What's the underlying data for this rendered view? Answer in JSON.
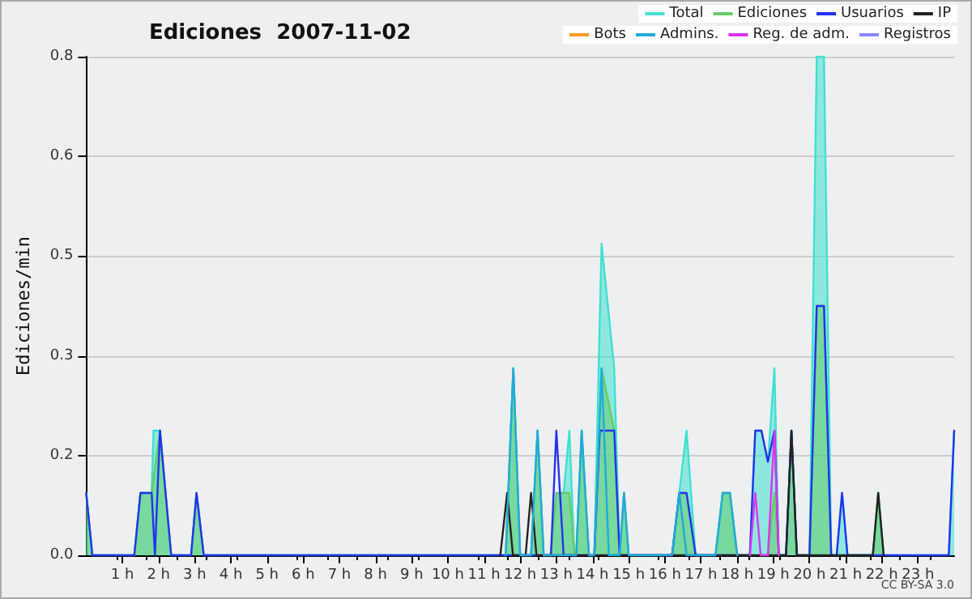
{
  "chart_data": {
    "type": "line",
    "title": "Ediciones  2007-11-02",
    "ylabel": "Ediciones/min",
    "annotations": [
      "CC BY-SA 3.0"
    ],
    "xlim": [
      0,
      24
    ],
    "xticks": [
      {
        "value": 1,
        "label": "1 h"
      },
      {
        "value": 2,
        "label": "2 h"
      },
      {
        "value": 3,
        "label": "3 h"
      },
      {
        "value": 4,
        "label": "4 h"
      },
      {
        "value": 5,
        "label": "5 h"
      },
      {
        "value": 6,
        "label": "6 h"
      },
      {
        "value": 7,
        "label": "7 h"
      },
      {
        "value": 8,
        "label": "8 h"
      },
      {
        "value": 9,
        "label": "9 h"
      },
      {
        "value": 10,
        "label": "10 h"
      },
      {
        "value": 11,
        "label": "11 h"
      },
      {
        "value": 12,
        "label": "12 h"
      },
      {
        "value": 13,
        "label": "13 h"
      },
      {
        "value": 14,
        "label": "14 h"
      },
      {
        "value": 15,
        "label": "15 h"
      },
      {
        "value": 16,
        "label": "16 h"
      },
      {
        "value": 17,
        "label": "17 h"
      },
      {
        "value": 18,
        "label": "18 h"
      },
      {
        "value": 19,
        "label": "19 h"
      },
      {
        "value": 20,
        "label": "20 h"
      },
      {
        "value": 21,
        "label": "21 h"
      },
      {
        "value": 22,
        "label": "22 h"
      },
      {
        "value": 23,
        "label": "23 h"
      }
    ],
    "ylim": [
      0,
      0.8
    ],
    "yticks": [
      {
        "value": 0,
        "label": "0.0"
      },
      {
        "value": 0.16,
        "label": "0.2"
      },
      {
        "value": 0.32,
        "label": "0.3"
      },
      {
        "value": 0.48,
        "label": "0.5"
      },
      {
        "value": 0.64,
        "label": "0.6"
      },
      {
        "value": 0.8,
        "label": "0.8"
      }
    ],
    "grid": "y",
    "legend": "top right",
    "marker": "none",
    "line_style": "solid",
    "series": [
      {
        "name": "Total",
        "type": "area",
        "color": "#40e0d0",
        "x": [
          0,
          0.17,
          1.33,
          1.5,
          1.81,
          1.86,
          2.04,
          2.35,
          2.9,
          3.05,
          3.25,
          11.6,
          11.81,
          12.0,
          12.3,
          12.48,
          12.65,
          12.85,
          13.0,
          13.2,
          13.36,
          13.5,
          13.55,
          13.7,
          13.9,
          14.05,
          14.25,
          14.6,
          14.75,
          14.87,
          15.0,
          16.2,
          16.4,
          16.6,
          16.85,
          17.4,
          17.6,
          17.8,
          18.0,
          18.35,
          18.5,
          18.67,
          18.85,
          19.03,
          19.15,
          19.35,
          19.5,
          19.65,
          20.0,
          20.2,
          20.4,
          20.6,
          20.75,
          20.9,
          21.05,
          21.75,
          21.9,
          22.05,
          23.85,
          24
        ],
        "values": [
          0.1,
          0,
          0,
          0.1,
          0.1,
          0.2,
          0.2,
          0,
          0,
          0.1,
          0,
          0,
          0.3,
          0,
          0,
          0.2,
          0,
          0,
          0.1,
          0.1,
          0.2,
          0,
          0,
          0.2,
          0,
          0,
          0.5,
          0.3,
          0,
          0.1,
          0,
          0,
          0.1,
          0.2,
          0,
          0,
          0.1,
          0.1,
          0,
          0,
          0.2,
          0.2,
          0.15,
          0.3,
          0,
          0,
          0.2,
          0,
          0,
          0.8,
          0.8,
          0,
          0,
          0.1,
          0,
          0,
          0.1,
          0,
          0,
          0.2
        ]
      },
      {
        "name": "Ediciones",
        "type": "area",
        "color": "#66cc66",
        "x": [
          0,
          0.17,
          1.33,
          1.5,
          1.81,
          2.04,
          2.35,
          2.9,
          3.05,
          3.25,
          11.6,
          11.81,
          12.0,
          12.3,
          12.48,
          12.65,
          12.85,
          13.0,
          13.2,
          13.36,
          13.5,
          13.55,
          13.7,
          13.9,
          14.05,
          14.25,
          14.6,
          14.75,
          14.87,
          15.0,
          16.2,
          16.4,
          16.6,
          16.85,
          17.4,
          17.6,
          17.8,
          18.0,
          18.85,
          19.03,
          19.15,
          19.35,
          19.5,
          19.65,
          20.0,
          20.2,
          20.4,
          20.6,
          21.75,
          21.9,
          22.05
        ],
        "values": [
          0.1,
          0,
          0,
          0.1,
          0.1,
          0.2,
          0,
          0,
          0.1,
          0,
          0,
          0.3,
          0,
          0,
          0.2,
          0,
          0,
          0.1,
          0.1,
          0.1,
          0,
          0,
          0.2,
          0,
          0,
          0.3,
          0.2,
          0,
          0.1,
          0,
          0,
          0.1,
          0.1,
          0,
          0,
          0.1,
          0.1,
          0,
          0,
          0.1,
          0,
          0,
          0.2,
          0,
          0,
          0.4,
          0.4,
          0,
          0,
          0.1,
          0
        ]
      },
      {
        "name": "Usuarios",
        "color": "#2233ee",
        "x": [
          0,
          0.17,
          1.33,
          1.5,
          1.81,
          1.9,
          2.04,
          2.35,
          2.9,
          3.05,
          3.25,
          12.85,
          13.0,
          13.2,
          14.05,
          14.2,
          14.6,
          14.75,
          16.2,
          16.4,
          16.6,
          16.85,
          18.35,
          18.5,
          18.67,
          18.85,
          19.03,
          19.15,
          19.35,
          19.5,
          19.65,
          20.0,
          20.2,
          20.4,
          20.6,
          20.75,
          20.9,
          21.05,
          23.85,
          24
        ],
        "values": [
          0.1,
          0,
          0,
          0.1,
          0.1,
          0,
          0.2,
          0,
          0,
          0.1,
          0,
          0,
          0.2,
          0,
          0,
          0.2,
          0.2,
          0,
          0,
          0.1,
          0.1,
          0,
          0,
          0.2,
          0.2,
          0.15,
          0.2,
          0,
          0,
          0.2,
          0,
          0,
          0.4,
          0.4,
          0,
          0,
          0.1,
          0,
          0,
          0.2
        ]
      },
      {
        "name": "IP",
        "color": "#222222",
        "x": [
          11.45,
          11.64,
          11.8,
          12.15,
          12.3,
          12.45,
          19.35,
          19.5,
          19.65,
          21.75,
          21.9,
          22.05
        ],
        "values": [
          0,
          0.1,
          0,
          0,
          0.1,
          0,
          0,
          0.2,
          0,
          0,
          0.1,
          0
        ]
      },
      {
        "name": "Bots",
        "color": "#ff9922"
      },
      {
        "name": "Admins.",
        "color": "#22aadd",
        "x": [
          11.6,
          11.81,
          12.0,
          12.3,
          12.48,
          12.65,
          13.55,
          13.7,
          13.9,
          14.05,
          14.25,
          14.45,
          14.75,
          14.87,
          15.0,
          16.2,
          16.4,
          16.6,
          17.4,
          17.6,
          17.8,
          18.0
        ],
        "values": [
          0,
          0.3,
          0,
          0,
          0.2,
          0,
          0,
          0.2,
          0,
          0,
          0.3,
          0,
          0,
          0.1,
          0,
          0,
          0.1,
          0,
          0,
          0.1,
          0.1,
          0
        ]
      },
      {
        "name": "Reg. de adm.",
        "color": "#dd33ee",
        "x": [
          18.35,
          18.5,
          18.65,
          18.85,
          19.03,
          19.15
        ],
        "values": [
          0,
          0.1,
          0,
          0,
          0.2,
          0
        ]
      },
      {
        "name": "Registros",
        "color": "#8888ff"
      }
    ]
  }
}
